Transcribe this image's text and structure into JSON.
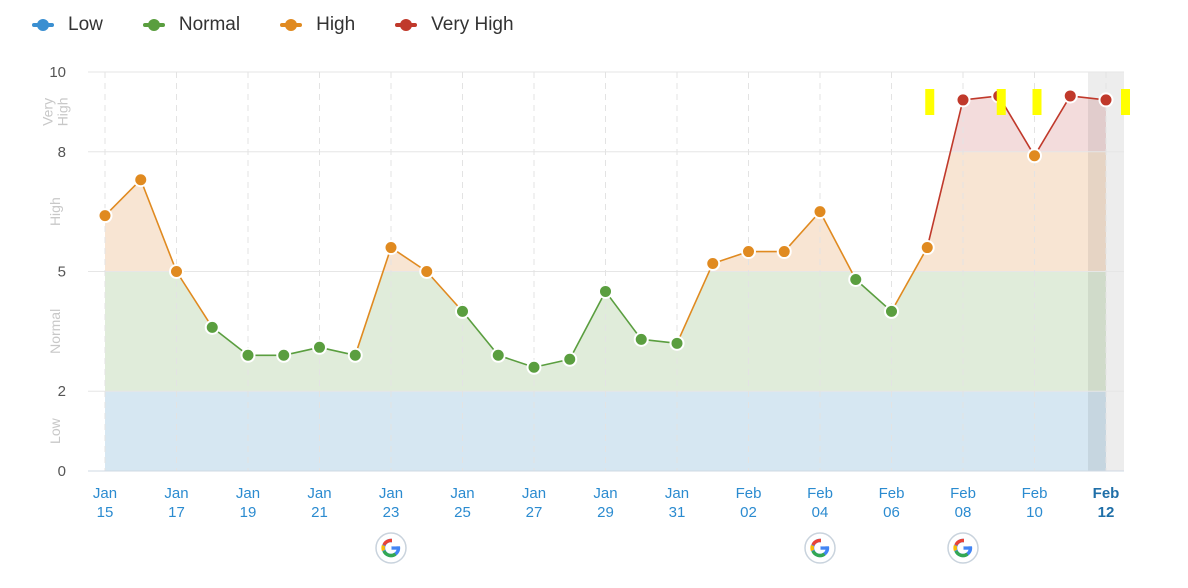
{
  "legend": [
    {
      "label": "Low",
      "color": "#3a8fd1"
    },
    {
      "label": "Normal",
      "color": "#5a9e3f"
    },
    {
      "label": "High",
      "color": "#e08a20"
    },
    {
      "label": "Very High",
      "color": "#c0392b"
    }
  ],
  "chart_data": {
    "type": "line",
    "title": "",
    "ylim": [
      0,
      10
    ],
    "y_ticks": [
      "0",
      "2",
      "5",
      "8",
      "10"
    ],
    "y_tick_values": [
      0,
      2,
      5,
      8,
      10
    ],
    "zones": [
      {
        "label": "Low",
        "from": 0,
        "to": 2,
        "color": "#d6e7f2"
      },
      {
        "label": "Normal",
        "from": 2,
        "to": 5,
        "color": "#e0ecda"
      },
      {
        "label": "High",
        "from": 5,
        "to": 8,
        "color": "#f8e5d3"
      },
      {
        "label": "Very High",
        "from": 8,
        "to": 10,
        "color": "#f3dcdc"
      }
    ],
    "zone_labels": [
      {
        "lines": [
          "Low"
        ],
        "from": 0,
        "to": 2
      },
      {
        "lines": [
          "Normal"
        ],
        "from": 2,
        "to": 5
      },
      {
        "lines": [
          "High"
        ],
        "from": 5,
        "to": 8
      },
      {
        "lines": [
          "Very",
          "High"
        ],
        "from": 8,
        "to": 10
      }
    ],
    "x_labels": [
      {
        "line1": "Jan",
        "line2": "15",
        "index": 0
      },
      {
        "line1": "Jan",
        "line2": "17",
        "index": 2
      },
      {
        "line1": "Jan",
        "line2": "19",
        "index": 4
      },
      {
        "line1": "Jan",
        "line2": "21",
        "index": 6
      },
      {
        "line1": "Jan",
        "line2": "23",
        "index": 8
      },
      {
        "line1": "Jan",
        "line2": "25",
        "index": 10
      },
      {
        "line1": "Jan",
        "line2": "27",
        "index": 12
      },
      {
        "line1": "Jan",
        "line2": "29",
        "index": 14
      },
      {
        "line1": "Jan",
        "line2": "31",
        "index": 16
      },
      {
        "line1": "Feb",
        "line2": "02",
        "index": 18
      },
      {
        "line1": "Feb",
        "line2": "04",
        "index": 20
      },
      {
        "line1": "Feb",
        "line2": "06",
        "index": 22
      },
      {
        "line1": "Feb",
        "line2": "08",
        "index": 24
      },
      {
        "line1": "Feb",
        "line2": "10",
        "index": 26
      },
      {
        "line1": "Feb",
        "line2": "12",
        "index": 28
      }
    ],
    "series": [
      {
        "dates": [
          "Jan 15",
          "Jan 16",
          "Jan 17",
          "Jan 18",
          "Jan 19",
          "Jan 20",
          "Jan 21",
          "Jan 22",
          "Jan 23",
          "Jan 24",
          "Jan 25",
          "Jan 26",
          "Jan 27",
          "Jan 28",
          "Jan 29",
          "Jan 30",
          "Jan 31",
          "Feb 01",
          "Feb 02",
          "Feb 03",
          "Feb 04",
          "Feb 05",
          "Feb 06",
          "Feb 07",
          "Feb 08",
          "Feb 09",
          "Feb 10",
          "Feb 11",
          "Feb 12"
        ],
        "values": [
          6.4,
          7.3,
          5.0,
          3.6,
          2.9,
          2.9,
          3.1,
          2.9,
          5.6,
          5.0,
          4.0,
          2.9,
          2.6,
          2.8,
          4.5,
          3.3,
          3.2,
          5.2,
          5.5,
          5.5,
          6.5,
          4.8,
          4.0,
          5.6,
          9.3,
          9.4,
          7.9,
          9.4,
          9.3
        ]
      }
    ],
    "google_update_markers": [
      "Jan 23",
      "Feb 04",
      "Feb 08"
    ],
    "highlight_markers": [
      "Feb 07",
      "Feb 09",
      "Feb 10",
      "Feb 12"
    ],
    "highlighted_date": "Feb 12",
    "grid": true
  }
}
